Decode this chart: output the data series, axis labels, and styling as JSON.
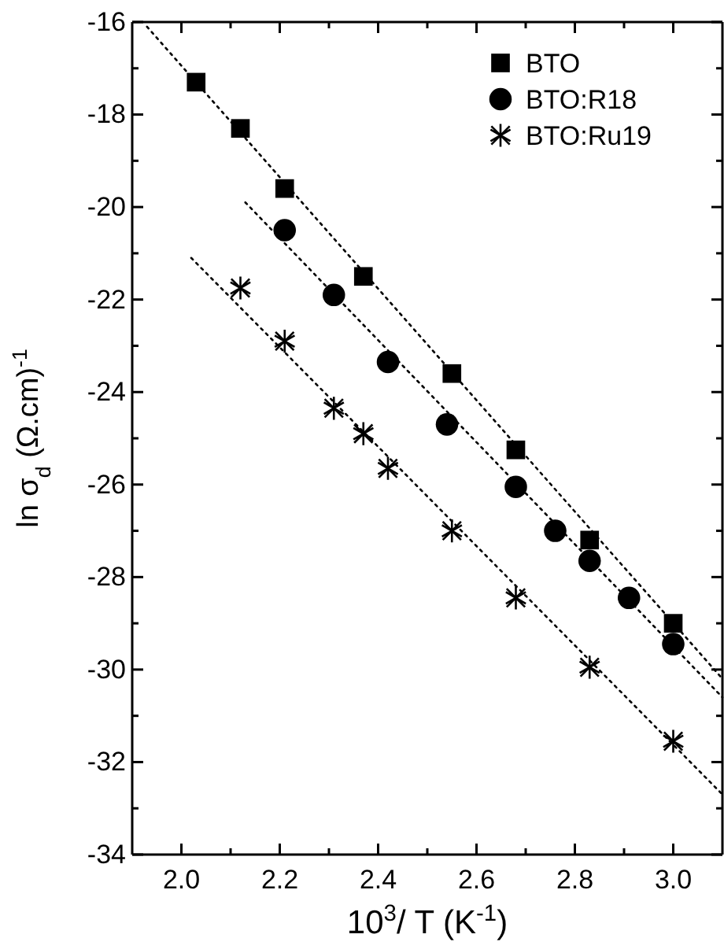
{
  "chart_data": {
    "type": "scatter",
    "xlabel": "10$^{3}$/ T  (K$^{-1}$)",
    "ylabel": "ln σ$_{d}$ (Ω.cm)$^{-1}$",
    "xlim": [
      1.9,
      3.1
    ],
    "ylim": [
      -34,
      -16
    ],
    "xticks": [
      {
        "value": 2,
        "label": "2.0"
      },
      {
        "value": 2.1,
        "label": null
      },
      2.2,
      {
        "value": 2.3,
        "label": null
      },
      2.4,
      {
        "value": 2.5,
        "label": null
      },
      2.6,
      {
        "value": 2.7,
        "label": null
      },
      2.8,
      {
        "value": 2.9,
        "label": null
      },
      {
        "value": 3,
        "label": "3.0"
      }
    ],
    "yticks": [
      -34,
      {
        "value": -33,
        "label": null
      },
      -32,
      {
        "value": -31,
        "label": null
      },
      -30,
      {
        "value": -29,
        "label": null
      },
      -28,
      {
        "value": -27,
        "label": null
      },
      -26,
      {
        "value": -25,
        "label": null
      },
      -24,
      {
        "value": -23,
        "label": null
      },
      -22,
      {
        "value": -21,
        "label": null
      },
      -20,
      {
        "value": -19,
        "label": null
      },
      -18,
      {
        "value": -17,
        "label": null
      },
      -16
    ],
    "legend": "top right",
    "series": [
      {
        "name": "BTO",
        "color": "#000000",
        "marker": "square",
        "x": [
          2.03,
          2.12,
          2.21,
          2.37,
          2.55,
          2.68,
          2.83,
          3.0
        ],
        "values": [
          -17.3,
          -18.3,
          -19.6,
          -21.5,
          -23.6,
          -25.25,
          -27.2,
          -29.0
        ]
      },
      {
        "name": "BTO:R18",
        "color": "#000000",
        "marker": "circle",
        "x": [
          2.21,
          2.31,
          2.42,
          2.54,
          2.68,
          2.76,
          2.83,
          2.91,
          3.0
        ],
        "values": [
          -20.5,
          -21.9,
          -23.35,
          -24.7,
          -26.05,
          -27.0,
          -27.65,
          -28.45,
          -29.45
        ]
      },
      {
        "name": "BTO:Ru19",
        "color": "#000000",
        "marker": "cross",
        "x": [
          2.12,
          2.21,
          2.31,
          2.37,
          2.42,
          2.55,
          2.68,
          2.83,
          3.0
        ],
        "values": [
          -21.75,
          -22.9,
          -24.35,
          -24.9,
          -25.65,
          -27.0,
          -28.45,
          -29.95,
          -31.55
        ]
      },
      {
        "type": "line",
        "color": "#000000",
        "marker": "none",
        "line_style": "dotted",
        "x": [
          1.93,
          3.1
        ],
        "values": [
          -16.1,
          -30.2
        ]
      },
      {
        "type": "line",
        "color": "#000000",
        "marker": "none",
        "line_style": "dotted",
        "x": [
          2.13,
          3.1
        ],
        "values": [
          -19.9,
          -30.6
        ]
      },
      {
        "type": "line",
        "color": "#000000",
        "marker": "none",
        "line_style": "dotted",
        "x": [
          2.02,
          3.1
        ],
        "values": [
          -21.1,
          -32.7
        ]
      }
    ]
  }
}
